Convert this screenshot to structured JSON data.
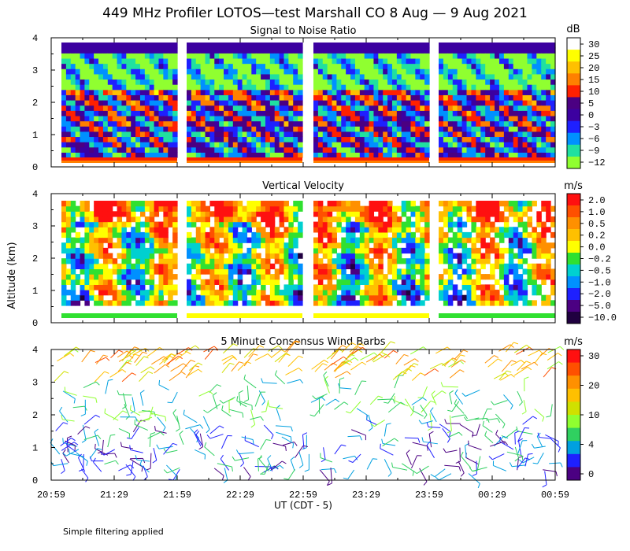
{
  "page": {
    "title": "449 MHz Profiler LOTOS—test Marshall CO  8 Aug —  9 Aug 2021",
    "footnote": "Simple filtering applied",
    "ylabel": "Altitude (km)",
    "xlabel": "UT  (CDT - 5)"
  },
  "chart_data": [
    {
      "type": "heatmap",
      "title": "Signal to Noise Ratio",
      "colorbar_unit": "dB",
      "colorbar_labels": [
        "30",
        "25",
        "20",
        "15",
        "10",
        "5",
        "0",
        "−3",
        "−6",
        "−9",
        "−12"
      ],
      "colorbar_colors": [
        "#ffffff",
        "#ffff00",
        "#ffc000",
        "#ff8000",
        "#ff2000",
        "#4b0082",
        "#3c00a0",
        "#1e20ff",
        "#0090ff",
        "#20e0a0",
        "#90ff30"
      ],
      "ylim": [
        0,
        4
      ],
      "yticks": [
        "0",
        "1",
        "2",
        "3",
        "4"
      ],
      "data_gaps": [
        [
          "21:49",
          "21:54"
        ],
        [
          "22:54",
          "22:59"
        ],
        [
          "23:54",
          "23:59"
        ]
      ]
    },
    {
      "type": "heatmap",
      "title": "Vertical Velocity",
      "colorbar_unit": "m/s",
      "colorbar_labels": [
        "2.0",
        "1.0",
        "0.5",
        "0.2",
        "0.0",
        "−0.2",
        "−0.5",
        "−1.0",
        "−2.0",
        "−5.0",
        "−10.0"
      ],
      "colorbar_colors": [
        "#ff1010",
        "#ff5000",
        "#ff9000",
        "#ffc000",
        "#ffff00",
        "#30e030",
        "#00d0d0",
        "#0090ff",
        "#1e20ff",
        "#4b0082",
        "#200040"
      ],
      "ylim": [
        0,
        4
      ],
      "yticks": [
        "0",
        "1",
        "2",
        "3",
        "4"
      ]
    },
    {
      "type": "scatter",
      "title": "5 Minute Consensus Wind Barbs",
      "colorbar_unit": "m/s",
      "colorbar_labels": [
        "30",
        "20",
        "10",
        "4",
        "0"
      ],
      "colorbar_colors": [
        "#ff1010",
        "#ff5000",
        "#ff9000",
        "#ffc000",
        "#d0e000",
        "#90ff30",
        "#30d060",
        "#00a0e0",
        "#1e20ff",
        "#4b0082"
      ],
      "ylim": [
        0,
        4
      ],
      "yticks": [
        "0",
        "1",
        "2",
        "3",
        "4"
      ],
      "x": [
        "20:59",
        "21:29",
        "21:59",
        "22:29",
        "22:59",
        "23:29",
        "23:59",
        "00:29",
        "00:59"
      ],
      "xlabel": "UT  (CDT - 5)"
    }
  ]
}
